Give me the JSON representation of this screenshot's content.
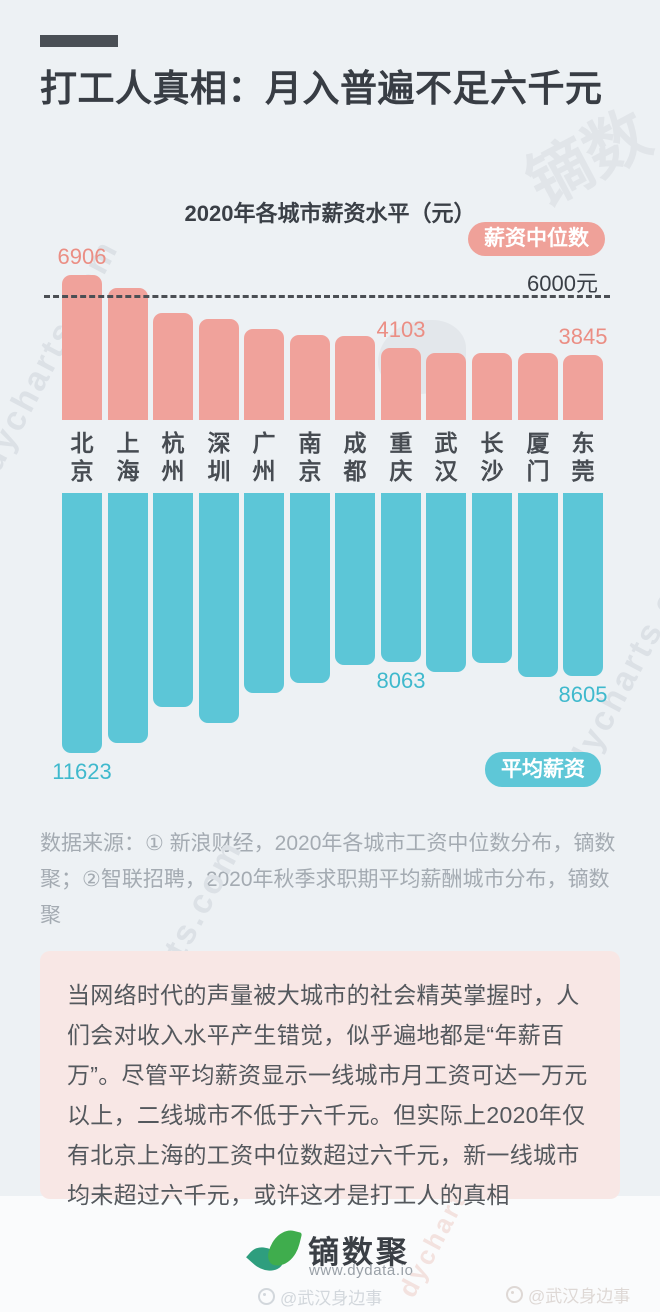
{
  "page": {
    "title": "打工人真相：月入普遍不足六千元",
    "source_note": "数据来源：① 新浪财经，2020年各城市工资中位数分布，镝数聚；②智联招聘，2020年秋季求职期平均薪酬城市分布，镝数聚",
    "commentary": "当网络时代的声量被大城市的社会精英掌握时，人们会对收入水平产生错觉，似乎遍地都是“年薪百万”。尽管平均薪资显示一线城市月工资可达一万元以上，二线城市不低于六千元。但实际上2020年仅有北京上海的工资中位数超过六千元，新一线城市均未超过六千元，或许这才是打工人的真相"
  },
  "footer": {
    "brand": "镝数聚",
    "website": "www.dydata.io",
    "watermark_center": "@武汉身边事",
    "watermark_right": "@武汉身边事",
    "watermark_diagonal": "dycharts.com",
    "watermark_cjk": "镝数"
  },
  "chart_data": {
    "type": "bar",
    "title": "2020年各城市薪资水平（元）",
    "categories": [
      "北京",
      "上海",
      "杭州",
      "深圳",
      "广州",
      "南京",
      "成都",
      "重庆",
      "武汉",
      "长沙",
      "厦门",
      "东莞"
    ],
    "series": [
      {
        "name": "薪资中位数",
        "direction": "up",
        "color": "#F0A29B",
        "label_color": "#EB8E84",
        "values": [
          6906,
          6410,
          5450,
          5220,
          4830,
          4600,
          4560,
          4103,
          3910,
          3910,
          3910,
          3845
        ],
        "visible_value_labels": [
          0,
          7,
          11
        ]
      },
      {
        "name": "平均薪资",
        "direction": "down",
        "color": "#5CC6D7",
        "label_color": "#3FB9CD",
        "values": [
          11623,
          11230,
          9820,
          10450,
          9270,
          8880,
          8180,
          8063,
          8450,
          8100,
          8650,
          8605
        ],
        "visible_value_labels": [
          0,
          7,
          11
        ]
      }
    ],
    "reference_line": {
      "value": 6000,
      "label": "6000元"
    },
    "value_axis": "hidden",
    "grid": false,
    "legend_position": "inline-badges"
  }
}
